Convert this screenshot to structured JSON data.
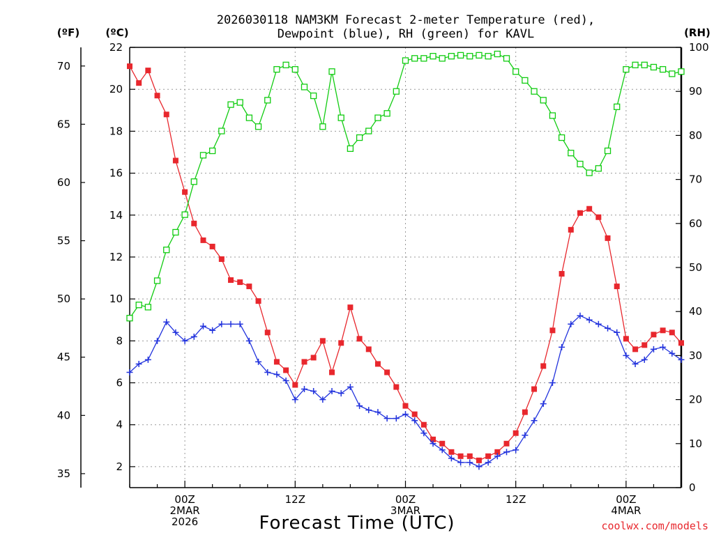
{
  "colors": {
    "temperature": "#e8272d",
    "dewpoint": "#2233dd",
    "rh": "#11cc11",
    "grid": "#999999",
    "credit": "#e8272d"
  },
  "chart_data": {
    "type": "line",
    "title": [
      "2026030118 NAM3KM Forecast 2-meter Temperature (red),",
      "Dewpoint (blue), RH (green) for KAVL"
    ],
    "xlabel": "Forecast Time (UTC)",
    "credit": "coolwx.com/models",
    "units": {
      "fahrenheit": "(ºF)",
      "celsius": "(ºC)",
      "rh": "(RH)"
    },
    "x": {
      "unit": "forecast hours",
      "range": [
        0,
        60
      ],
      "step": 1
    },
    "x_ticks": [
      {
        "hour": 6,
        "lines": [
          "00Z",
          "2MAR",
          "2026"
        ]
      },
      {
        "hour": 18,
        "lines": [
          "12Z"
        ]
      },
      {
        "hour": 30,
        "lines": [
          "00Z",
          "3MAR"
        ]
      },
      {
        "hour": 42,
        "lines": [
          "12Z"
        ]
      },
      {
        "hour": 54,
        "lines": [
          "00Z",
          "4MAR"
        ]
      }
    ],
    "y_celsius": {
      "range": [
        1.0,
        22.0
      ],
      "ticks": [
        2,
        4,
        6,
        8,
        10,
        12,
        14,
        16,
        18,
        20,
        22
      ]
    },
    "y_fahrenheit": {
      "ticks": [
        35,
        40,
        45,
        50,
        55,
        60,
        65,
        70
      ]
    },
    "y_rh": {
      "range": [
        0,
        100
      ],
      "ticks": [
        0,
        10,
        20,
        30,
        40,
        50,
        60,
        70,
        80,
        90,
        100
      ]
    },
    "series": [
      {
        "name": "Temperature",
        "unit": "C",
        "marker": "filled-square",
        "values": [
          21.1,
          20.3,
          20.9,
          19.7,
          18.8,
          16.6,
          15.1,
          13.6,
          12.8,
          12.5,
          11.9,
          10.9,
          10.8,
          10.6,
          9.9,
          8.4,
          7.0,
          6.6,
          5.9,
          7.0,
          7.2,
          8.0,
          6.5,
          7.9,
          9.6,
          8.1,
          7.6,
          6.9,
          6.5,
          5.8,
          4.9,
          4.5,
          4.0,
          3.3,
          3.1,
          2.7,
          2.5,
          2.5,
          2.3,
          2.5,
          2.7,
          3.1,
          3.6,
          4.6,
          5.7,
          6.8,
          8.5,
          11.2,
          13.3,
          14.1,
          14.3,
          13.9,
          12.9,
          10.6,
          8.1,
          7.6,
          7.8,
          8.3,
          8.5,
          8.4,
          7.9
        ]
      },
      {
        "name": "Dewpoint",
        "unit": "C",
        "marker": "plus",
        "values": [
          6.5,
          6.9,
          7.1,
          8.0,
          8.9,
          8.4,
          8.0,
          8.2,
          8.7,
          8.5,
          8.8,
          8.8,
          8.8,
          8.0,
          7.0,
          6.5,
          6.4,
          6.1,
          5.2,
          5.7,
          5.6,
          5.2,
          5.6,
          5.5,
          5.8,
          4.9,
          4.7,
          4.6,
          4.3,
          4.3,
          4.5,
          4.2,
          3.6,
          3.1,
          2.8,
          2.4,
          2.2,
          2.2,
          2.0,
          2.2,
          2.5,
          2.7,
          2.8,
          3.5,
          4.2,
          5.0,
          6.0,
          7.7,
          8.8,
          9.2,
          9.0,
          8.8,
          8.6,
          8.4,
          7.3,
          6.9,
          7.1,
          7.6,
          7.7,
          7.4,
          7.1
        ]
      },
      {
        "name": "RH",
        "unit": "%",
        "marker": "open-square",
        "values": [
          38.5,
          41.5,
          41.0,
          47.0,
          54.0,
          58.0,
          62.0,
          69.5,
          75.5,
          76.5,
          81.0,
          87.0,
          87.5,
          84.0,
          82.0,
          88.0,
          95.0,
          96.0,
          95.0,
          91.0,
          89.0,
          82.0,
          94.5,
          84.0,
          77.0,
          79.5,
          81.0,
          84.0,
          85.0,
          90.0,
          97.0,
          97.5,
          97.5,
          98.0,
          97.5,
          98.0,
          98.2,
          98.0,
          98.2,
          98.0,
          98.5,
          97.5,
          94.5,
          92.5,
          90.0,
          88.0,
          84.5,
          79.5,
          76.0,
          73.5,
          71.5,
          72.5,
          76.5,
          86.5,
          95.0,
          96.0,
          96.0,
          95.5,
          95.0,
          94.0,
          94.5
        ]
      }
    ]
  }
}
